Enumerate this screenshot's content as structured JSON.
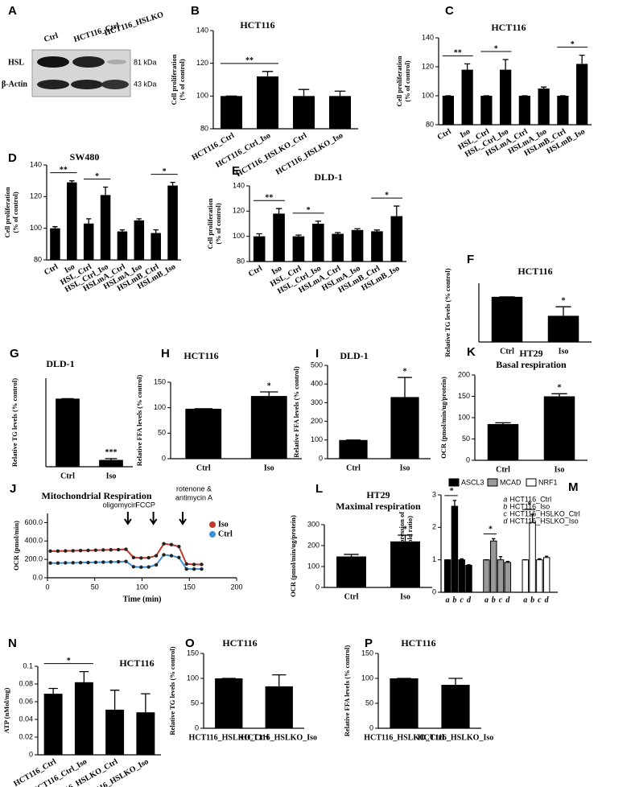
{
  "blot": {
    "label": "A",
    "lanes": [
      "Ctrl",
      "HCT116_Ctrl",
      "HCT116_HSLKO"
    ],
    "rows": [
      "HSL",
      "β-Actin"
    ],
    "sizes": [
      "81 kDa",
      "43 kDa"
    ]
  },
  "chart_data": [
    {
      "type": "bar",
      "label": "B",
      "title": "HCT116",
      "y_label": [
        "Cell proliferation",
        "(% of control)"
      ],
      "categories": [
        "HCT116_Ctrl",
        "HCT116_Ctrl_Iso",
        "HCT116_HSLKO_Ctrl",
        "HCT116_HSLKO_Iso"
      ],
      "values": [
        100,
        112,
        100,
        100
      ],
      "errors": [
        0,
        3,
        4,
        3
      ],
      "color": "#000000",
      "ylim": [
        80,
        140
      ],
      "yticks": [
        80,
        100,
        120,
        140
      ],
      "rotated_labels": true,
      "annotations": [
        {
          "text": "**",
          "between": [
            "HCT116_Ctrl",
            "HCT116_Ctrl_Iso"
          ]
        }
      ]
    },
    {
      "type": "bar",
      "label": "C",
      "title": "HCT116",
      "y_label": [
        "Cell proliferation",
        "(% of control)"
      ],
      "categories": [
        "Ctrl",
        "Iso",
        "HSL_Ctrl",
        "HSL_Ctrl_Iso",
        "HSLmA_Ctrl",
        "HSLmA_Iso",
        "HSLmB_Ctrl",
        "HSLmB_Iso"
      ],
      "values": [
        100,
        118,
        100,
        118,
        100,
        105,
        100,
        122
      ],
      "errors": [
        0,
        4,
        0,
        7,
        0,
        1,
        0,
        6
      ],
      "color": "#000000",
      "ylim": [
        80,
        140
      ],
      "yticks": [
        80,
        100,
        120,
        140
      ],
      "rotated_labels": true,
      "annotations": [
        {
          "text": "**",
          "between": [
            "Ctrl",
            "Iso"
          ]
        },
        {
          "text": "*",
          "between": [
            "HSL_Ctrl",
            "HSL_Ctrl_Iso"
          ]
        },
        {
          "text": "*",
          "between": [
            "HSLmB_Ctrl",
            "HSLmB_Iso"
          ]
        }
      ]
    },
    {
      "type": "bar",
      "label": "D",
      "title": "SW480",
      "y_label": [
        "Cell proliferation",
        "(% of control)"
      ],
      "categories": [
        "Ctrl",
        "Iso",
        "HSL_Ctrl",
        "HSL_Ctrl_Iso",
        "HSLmA_Ctrl",
        "HSLmA_Iso",
        "HSLmB_Ctrl",
        "HSLmB_Iso"
      ],
      "values": [
        100,
        129,
        103,
        121,
        98,
        105,
        97,
        127
      ],
      "errors": [
        1,
        1,
        3,
        5,
        1,
        1,
        2,
        2
      ],
      "color": "#000000",
      "ylim": [
        80,
        140
      ],
      "yticks": [
        80,
        100,
        120,
        140
      ],
      "rotated_labels": true,
      "annotations": [
        {
          "text": "**",
          "between": [
            "Ctrl",
            "Iso"
          ]
        },
        {
          "text": "*",
          "between": [
            "HSL_Ctrl",
            "HSL_Ctrl_Iso"
          ]
        },
        {
          "text": "*",
          "between": [
            "HSLmB_Ctrl",
            "HSLmB_Iso"
          ]
        }
      ]
    },
    {
      "type": "bar",
      "label": "E",
      "title": "DLD-1",
      "y_label": [
        "Cell proliferation",
        "(% of control)"
      ],
      "categories": [
        "Ctrl",
        "Iso",
        "HSL_Ctrl",
        "HSL_Ctrl_Iso",
        "HSLmA_Ctrl",
        "HSLmA_Iso",
        "HSLmB_Ctrl",
        "HSLmB_Iso"
      ],
      "values": [
        100,
        118,
        100,
        110,
        102,
        105,
        104,
        116
      ],
      "errors": [
        2,
        4,
        1,
        2,
        1,
        1,
        1,
        8
      ],
      "color": "#000000",
      "ylim": [
        80,
        140
      ],
      "yticks": [
        80,
        100,
        120,
        140
      ],
      "rotated_labels": true,
      "annotations": [
        {
          "text": "**",
          "between": [
            "Ctrl",
            "Iso"
          ]
        },
        {
          "text": "*",
          "between": [
            "HSL_Ctrl",
            "HSL_Ctrl_Iso"
          ]
        },
        {
          "text": "*",
          "between": [
            "HSLmB_Ctrl",
            "HSLmB_Iso"
          ]
        }
      ]
    },
    {
      "type": "bar",
      "label": "F",
      "title": "HCT116",
      "y_label": "Relative TG levels (% control)",
      "categories": [
        "Ctrl",
        "Iso"
      ],
      "values": [
        100,
        58
      ],
      "errors": [
        0,
        20
      ],
      "color": "#000000",
      "ylim": [
        0,
        130
      ],
      "annotations": [
        {
          "text": "*",
          "above": "Iso"
        }
      ]
    },
    {
      "type": "bar",
      "label": "G",
      "title": "DLD-1",
      "y_label": "Relative TG levels (% control)",
      "categories": [
        "Ctrl",
        "Iso"
      ],
      "values": [
        100,
        10
      ],
      "errors": [
        0,
        2
      ],
      "color": "#000000",
      "ylim": [
        0,
        130
      ],
      "annotations": [
        {
          "text": "***",
          "above": "Iso"
        }
      ]
    },
    {
      "type": "bar",
      "label": "H",
      "title": "HCT116",
      "y_label": "Relative FFA levels (% control)",
      "categories": [
        "Ctrl",
        "Iso"
      ],
      "values": [
        98,
        123
      ],
      "errors": [
        0,
        8
      ],
      "color": "#000000",
      "ylim": [
        0,
        150
      ],
      "yticks": [
        0,
        50,
        100,
        150
      ],
      "annotations": [
        {
          "text": "*",
          "above": "Iso"
        }
      ]
    },
    {
      "type": "bar",
      "label": "I",
      "title": "DLD-1",
      "y_label": "Relative FFA levels (% control)",
      "categories": [
        "Ctrl",
        "Iso"
      ],
      "values": [
        100,
        330
      ],
      "errors": [
        0,
        105
      ],
      "color": "#000000",
      "ylim": [
        0,
        500
      ],
      "yticks": [
        0,
        100,
        200,
        300,
        400,
        500
      ],
      "annotations": [
        {
          "text": "*",
          "above": "Iso"
        }
      ]
    },
    {
      "type": "bar",
      "label": "K",
      "title": [
        "HT29",
        "Basal respiration"
      ],
      "y_label": "OCR (pmol/min/ug/protein)",
      "categories": [
        "Ctrl",
        "Iso"
      ],
      "values": [
        85,
        150
      ],
      "errors": [
        3,
        6
      ],
      "color": "#000000",
      "ylim": [
        0,
        200
      ],
      "yticks": [
        0,
        50,
        100,
        150,
        200
      ],
      "annotations": [
        {
          "text": "*",
          "above": "Iso"
        }
      ]
    },
    {
      "type": "line",
      "label": "J",
      "title": "Mitochondrial Respiration",
      "x_label": "Time (min)",
      "y_label": "OCR (pmol/min)",
      "x": [
        3,
        11,
        19,
        27,
        35,
        43,
        51,
        59,
        67,
        75,
        83,
        91,
        99,
        107,
        115,
        123,
        131,
        139,
        147,
        155,
        163
      ],
      "series": [
        {
          "name": "Iso",
          "color": "#c0392b",
          "values": [
            290,
            290,
            292,
            294,
            296,
            298,
            300,
            302,
            304,
            306,
            310,
            220,
            215,
            218,
            240,
            370,
            360,
            340,
            150,
            145,
            145
          ]
        },
        {
          "name": "Ctrl",
          "color": "#3d8fd6",
          "values": [
            160,
            160,
            162,
            163,
            165,
            166,
            168,
            170,
            172,
            174,
            178,
            120,
            115,
            118,
            140,
            250,
            240,
            220,
            95,
            95,
            95
          ]
        }
      ],
      "xlim": [
        0,
        200
      ],
      "xticks": [
        0,
        50,
        100,
        150,
        200
      ],
      "ylim": [
        0,
        700
      ],
      "yticks": [
        {
          "value": 0,
          "label": "0.0"
        },
        {
          "value": 200,
          "label": "200.0"
        },
        {
          "value": 400,
          "label": "400.0"
        },
        {
          "value": 600,
          "label": "600.0"
        }
      ],
      "legend": "upper right",
      "annotations": [
        {
          "text": "oligomycin",
          "x": 85
        },
        {
          "text": "FCCP",
          "x": 112
        },
        {
          "text": [
            "rotenone &",
            "antimycin A"
          ],
          "x": 143
        }
      ]
    },
    {
      "type": "bar",
      "label": "L",
      "title": [
        "HT29",
        "Maximal respiration"
      ],
      "y_label": "OCR (pmol/min/ug/protein)",
      "categories": [
        "Ctrl",
        "Iso"
      ],
      "values": [
        148,
        220
      ],
      "errors": [
        10,
        30
      ],
      "color": "#000000",
      "ylim": [
        0,
        300
      ],
      "yticks": [
        0,
        100,
        200,
        300
      ],
      "annotations": [
        {
          "text": "*",
          "above": "Iso"
        }
      ]
    },
    {
      "type": "grouped_bar",
      "label": "M",
      "y_label": [
        "Relative expression of",
        "mRNA (Fold ratio)"
      ],
      "categories": [
        "a",
        "b",
        "c",
        "d"
      ],
      "series": [
        {
          "name": "ASCL3",
          "color": "#000000",
          "values": [
            1,
            2.65,
            1,
            0.83
          ],
          "errors": [
            0,
            0.18,
            0.03,
            0.02
          ]
        },
        {
          "name": "MCAD",
          "color": "#999999",
          "values": [
            1,
            1.58,
            1,
            0.92
          ],
          "errors": [
            0,
            0.07,
            0.1,
            0.03
          ]
        },
        {
          "name": "NRF1",
          "color": "#ffffff",
          "values": [
            1,
            2.15,
            1,
            1.07
          ],
          "errors": [
            0,
            0.25,
            0.03,
            0.04
          ]
        }
      ],
      "category_legend": [
        {
          "key": "a",
          "label": "HCT116_Ctrl"
        },
        {
          "key": "b",
          "label": "HCT116_Iso"
        },
        {
          "key": "c",
          "label": "HCT116_HSLKO_Ctrl"
        },
        {
          "key": "d",
          "label": "HCT116_HSLKO_Iso"
        }
      ],
      "ylim": [
        0,
        3
      ],
      "yticks": [
        0,
        1,
        2,
        3
      ],
      "annotations": [
        {
          "text": "*",
          "series": "ASCL3"
        },
        {
          "text": "*",
          "series": "MCAD"
        },
        {
          "text": "*",
          "series": "NRF1"
        }
      ]
    },
    {
      "type": "bar",
      "label": "N",
      "title": "HCT116",
      "y_label": "ATP (nMol/mg)",
      "categories": [
        "HCT116_Ctrl",
        "HCT116_Ctrl_Iso",
        "HCT116_HSLKO_Ctrl",
        "HCT116_HSLKO_Iso"
      ],
      "values": [
        0.069,
        0.082,
        0.051,
        0.048
      ],
      "errors": [
        0.006,
        0.012,
        0.022,
        0.021
      ],
      "color": "#000000",
      "ylim": [
        0,
        0.1
      ],
      "yticks": [
        0,
        0.02,
        0.04,
        0.06,
        0.08,
        0.1
      ],
      "rotated_labels": true,
      "annotations": [
        {
          "text": "*",
          "between": [
            "HCT116_Ctrl",
            "HCT116_Ctrl_Iso"
          ]
        }
      ]
    },
    {
      "type": "bar",
      "label": "O",
      "title": "HCT116",
      "y_label": "Relative TG levels (% control)",
      "categories": [
        "HCT116_HSLKO_Ctrl",
        "HCT116_HSLKO_Iso"
      ],
      "values": [
        100,
        84
      ],
      "errors": [
        0,
        23
      ],
      "color": "#000000",
      "ylim": [
        0,
        150
      ],
      "yticks": [
        0,
        50,
        100,
        150
      ]
    },
    {
      "type": "bar",
      "label": "P",
      "title": "HCT116",
      "y_label": "Relative FFA levels (% control)",
      "categories": [
        "HCT116_HSLKO_Ctrl",
        "HCT116_HSLKO_Iso"
      ],
      "values": [
        100,
        87
      ],
      "errors": [
        0,
        13
      ],
      "color": "#000000",
      "ylim": [
        0,
        150
      ],
      "yticks": [
        0,
        50,
        100,
        150
      ]
    }
  ]
}
